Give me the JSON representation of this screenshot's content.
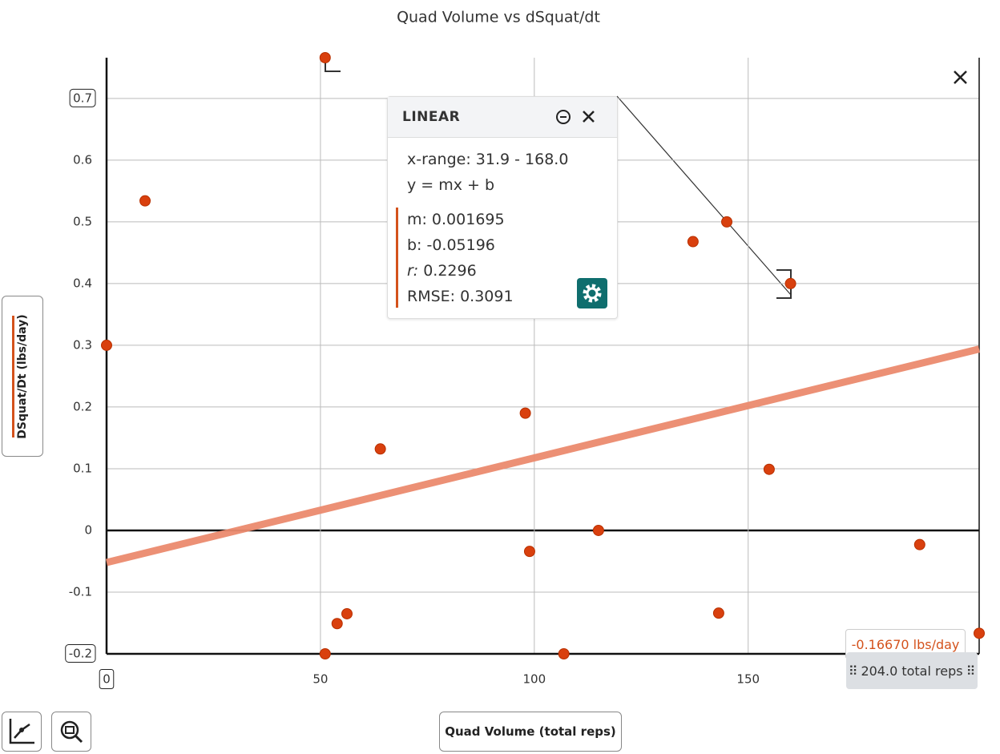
{
  "chart_data": {
    "type": "scatter",
    "title": "Quad Volume vs dSquat/dt",
    "x_label": "Quad Volume (total reps)",
    "y_label": "DSquat/Dt (lbs/day)",
    "color": "#d9400e",
    "x": [
      0,
      9.0,
      51.1,
      64.0,
      51.1,
      53.9,
      56.2,
      97.9,
      98.9,
      106.9,
      115.0,
      137.1,
      145.0,
      143.1,
      159.9,
      154.9,
      190.1,
      204
    ],
    "values": [
      0.3,
      0.534,
      0.766,
      0.132,
      -0.2,
      -0.151,
      -0.135,
      0.19,
      -0.034,
      -0.2,
      0,
      0.468,
      0.5,
      -0.134,
      0.4,
      0.099,
      -0.023,
      -0.1667
    ],
    "xlim": [
      0,
      204
    ],
    "ylim": [
      -0.2,
      0.766
    ],
    "xticks": [
      0,
      50,
      100,
      150
    ],
    "yticks": [
      -0.2,
      -0.1,
      0,
      0.1,
      0.2,
      0.3,
      0.4,
      0.5,
      0.6,
      0.7
    ],
    "grid": true
  },
  "regression": {
    "title": "LINEAR",
    "x_range": "x-range: 31.9 - 168.0",
    "equation": "y = mx + b",
    "color": "#eb8a6e",
    "params": [
      {
        "label": "m:",
        "value": 0.001695
      },
      {
        "label": "b:",
        "value": -0.05196
      },
      {
        "label": "r:",
        "value": 0.2296
      },
      {
        "label": "RMSE:",
        "value": 0.3091
      }
    ]
  },
  "tooltip": {
    "y_text": "-0.16670 lbs/day",
    "x_text": "204.0 total reps"
  }
}
